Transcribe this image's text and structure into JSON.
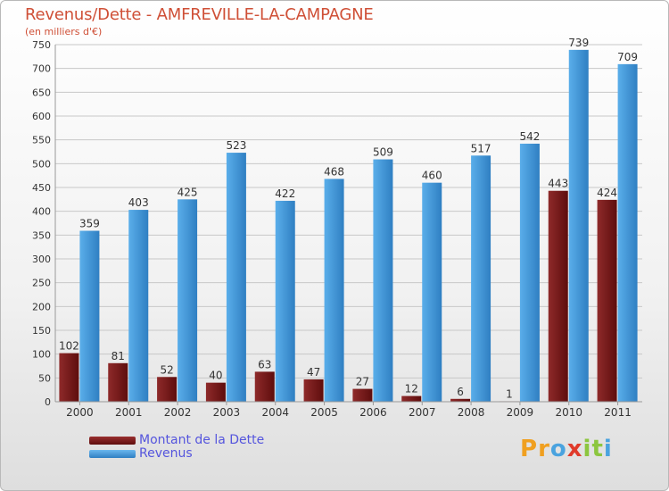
{
  "header": {
    "title": "Revenus/Dette - AMFREVILLE-LA-CAMPAGNE",
    "subtitle": "(en milliers d'€)"
  },
  "legend": {
    "debt_label": "Montant de la Dette",
    "revenue_label": "Revenus"
  },
  "logo": {
    "text": "Proxiti",
    "letters": [
      "P",
      "r",
      "o",
      "x",
      "i",
      "t",
      "i"
    ],
    "colors": [
      "#f0a020",
      "#f0a020",
      "#4aa3df",
      "#e03a2a",
      "#8cc63f",
      "#8cc63f",
      "#4aa3df"
    ]
  },
  "colors": {
    "debt": "#7a1a1a",
    "revenue": "#4d9fe0",
    "grid": "#c8c8c8",
    "title": "#cf4f36",
    "legend_text": "#5555dd"
  },
  "chart_data": {
    "type": "bar",
    "title": "Revenus/Dette - AMFREVILLE-LA-CAMPAGNE",
    "subtitle": "(en milliers d'€)",
    "categories": [
      "2000",
      "2001",
      "2002",
      "2003",
      "2004",
      "2005",
      "2006",
      "2007",
      "2008",
      "2009",
      "2010",
      "2011"
    ],
    "series": [
      {
        "name": "Montant de la Dette",
        "values": [
          102,
          81,
          52,
          40,
          63,
          47,
          27,
          12,
          6,
          1,
          443,
          424
        ]
      },
      {
        "name": "Revenus",
        "values": [
          359,
          403,
          425,
          523,
          422,
          468,
          509,
          460,
          517,
          542,
          739,
          709
        ]
      }
    ],
    "ylim": [
      0,
      750
    ],
    "yticks": [
      0,
      50,
      100,
      150,
      200,
      250,
      300,
      350,
      400,
      450,
      500,
      550,
      600,
      650,
      700,
      750
    ],
    "grid": true,
    "legend": "bottom-left"
  }
}
